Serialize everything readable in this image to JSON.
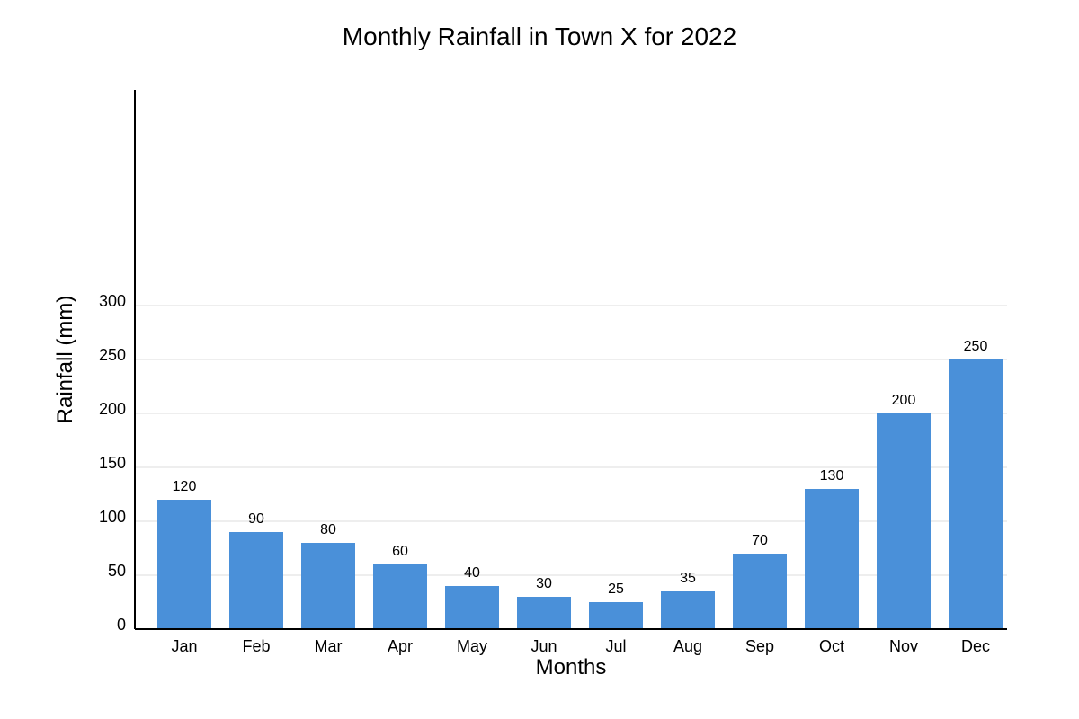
{
  "chart_data": {
    "type": "bar",
    "title": "Monthly Rainfall in Town X for 2022",
    "xlabel": "Months",
    "ylabel": "Rainfall (mm)",
    "categories": [
      "Jan",
      "Feb",
      "Mar",
      "Apr",
      "May",
      "Jun",
      "Jul",
      "Aug",
      "Sep",
      "Oct",
      "Nov",
      "Dec"
    ],
    "values": [
      120,
      90,
      80,
      60,
      40,
      30,
      25,
      35,
      70,
      130,
      200,
      250
    ],
    "value_labels": [
      "120",
      "90",
      "80",
      "60",
      "40",
      "30",
      "25",
      "35",
      "70",
      "130",
      "200",
      "250"
    ],
    "y_ticks": [
      0,
      50,
      100,
      150,
      200,
      250,
      300
    ],
    "y_tick_labels": [
      "0",
      "50",
      "100",
      "150",
      "200",
      "250",
      "300"
    ],
    "ylim": [
      0,
      300
    ],
    "grid": true,
    "legend": "none",
    "colors": {
      "bar": "#4a90d9",
      "grid": "#dddddd",
      "axis": "#000000"
    }
  }
}
